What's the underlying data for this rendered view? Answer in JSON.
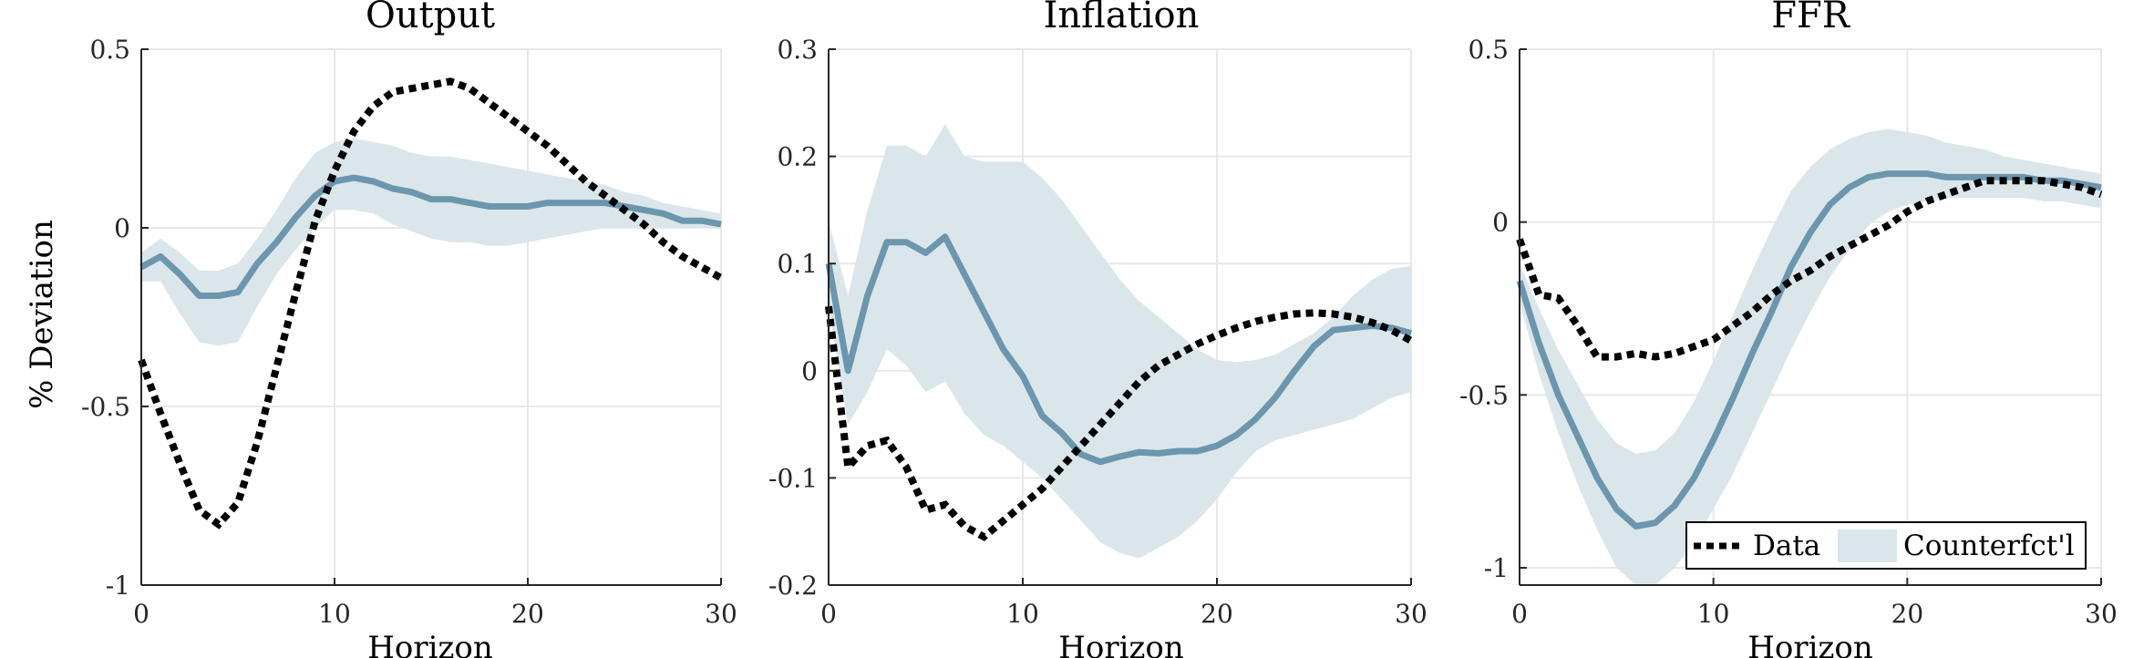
{
  "colors": {
    "band": "#dbe6eb",
    "median": "#6b96ae",
    "data_line": "#000000",
    "grid": "#e8e8e8",
    "axis": "#262626"
  },
  "shared_ylabel": "% Deviation",
  "legend": {
    "data_label": "Data",
    "band_label": "Counterfct'l",
    "location": "bottom-right of FFR panel"
  },
  "chart_data": [
    {
      "type": "line",
      "title": "Output",
      "xlabel": "Horizon",
      "ylabel": "% Deviation",
      "xlim": [
        0,
        30
      ],
      "ylim": [
        -1,
        0.5
      ],
      "xticks": [
        0,
        10,
        20,
        30
      ],
      "yticks": [
        -1,
        -0.5,
        0,
        0.5
      ],
      "ytick_labels": [
        "-1",
        "-0.5",
        "0",
        "0.5"
      ],
      "grid": true,
      "x": [
        0,
        1,
        2,
        3,
        4,
        5,
        6,
        7,
        8,
        9,
        10,
        11,
        12,
        13,
        14,
        15,
        16,
        17,
        18,
        19,
        20,
        21,
        22,
        23,
        24,
        25,
        26,
        27,
        28,
        29,
        30
      ],
      "series": [
        {
          "name": "Data",
          "style": "dotted",
          "values": [
            -0.37,
            -0.52,
            -0.66,
            -0.79,
            -0.83,
            -0.77,
            -0.6,
            -0.39,
            -0.18,
            0.02,
            0.16,
            0.27,
            0.34,
            0.38,
            0.39,
            0.4,
            0.41,
            0.39,
            0.35,
            0.31,
            0.27,
            0.23,
            0.18,
            0.13,
            0.09,
            0.05,
            0.01,
            -0.04,
            -0.08,
            -0.11,
            -0.14
          ]
        },
        {
          "name": "Counterfct'l",
          "style": "solid",
          "values": [
            -0.11,
            -0.08,
            -0.13,
            -0.19,
            -0.19,
            -0.18,
            -0.1,
            -0.04,
            0.03,
            0.09,
            0.13,
            0.14,
            0.13,
            0.11,
            0.1,
            0.08,
            0.08,
            0.07,
            0.06,
            0.06,
            0.06,
            0.07,
            0.07,
            0.07,
            0.07,
            0.06,
            0.05,
            0.04,
            0.02,
            0.02,
            0.01
          ]
        },
        {
          "name": "band_upper",
          "values": [
            -0.07,
            -0.03,
            -0.07,
            -0.12,
            -0.12,
            -0.1,
            -0.03,
            0.05,
            0.14,
            0.21,
            0.24,
            0.25,
            0.24,
            0.23,
            0.21,
            0.2,
            0.2,
            0.19,
            0.18,
            0.17,
            0.16,
            0.15,
            0.14,
            0.13,
            0.12,
            0.1,
            0.09,
            0.07,
            0.06,
            0.05,
            0.04
          ]
        },
        {
          "name": "band_lower",
          "values": [
            -0.15,
            -0.15,
            -0.24,
            -0.32,
            -0.33,
            -0.32,
            -0.22,
            -0.13,
            -0.06,
            0.0,
            0.05,
            0.05,
            0.04,
            0.01,
            -0.01,
            -0.03,
            -0.04,
            -0.04,
            -0.05,
            -0.05,
            -0.04,
            -0.03,
            -0.02,
            -0.01,
            0.0,
            0.0,
            0.0,
            0.0,
            0.0,
            0.0,
            0.0
          ]
        }
      ]
    },
    {
      "type": "line",
      "title": "Inflation",
      "xlabel": "Horizon",
      "xlim": [
        0,
        30
      ],
      "ylim": [
        -0.2,
        0.3
      ],
      "xticks": [
        0,
        10,
        20,
        30
      ],
      "yticks": [
        -0.2,
        -0.1,
        0,
        0.1,
        0.2,
        0.3
      ],
      "ytick_labels": [
        "-0.2",
        "-0.1",
        "0",
        "0.1",
        "0.2",
        "0.3"
      ],
      "grid": true,
      "x": [
        0,
        1,
        2,
        3,
        4,
        5,
        6,
        7,
        8,
        9,
        10,
        11,
        12,
        13,
        14,
        15,
        16,
        17,
        18,
        19,
        20,
        21,
        22,
        23,
        24,
        25,
        26,
        27,
        28,
        29,
        30
      ],
      "series": [
        {
          "name": "Data",
          "style": "dotted",
          "values": [
            0.06,
            -0.09,
            -0.07,
            -0.065,
            -0.09,
            -0.13,
            -0.125,
            -0.145,
            -0.155,
            -0.14,
            -0.125,
            -0.11,
            -0.09,
            -0.07,
            -0.05,
            -0.03,
            -0.01,
            0.005,
            0.015,
            0.025,
            0.033,
            0.04,
            0.046,
            0.05,
            0.053,
            0.054,
            0.053,
            0.05,
            0.045,
            0.038,
            0.028
          ]
        },
        {
          "name": "Counterfct'l",
          "style": "solid",
          "values": [
            0.1,
            0.0,
            0.07,
            0.12,
            0.12,
            0.11,
            0.125,
            0.09,
            0.055,
            0.02,
            -0.005,
            -0.042,
            -0.058,
            -0.078,
            -0.085,
            -0.08,
            -0.076,
            -0.077,
            -0.075,
            -0.075,
            -0.07,
            -0.06,
            -0.045,
            -0.025,
            0.0,
            0.023,
            0.038,
            0.04,
            0.042,
            0.04,
            0.035
          ]
        },
        {
          "name": "band_upper",
          "values": [
            0.14,
            0.07,
            0.15,
            0.21,
            0.21,
            0.2,
            0.23,
            0.2,
            0.195,
            0.195,
            0.195,
            0.18,
            0.16,
            0.135,
            0.11,
            0.085,
            0.065,
            0.05,
            0.035,
            0.02,
            0.01,
            0.008,
            0.01,
            0.015,
            0.025,
            0.035,
            0.05,
            0.07,
            0.085,
            0.095,
            0.098
          ]
        },
        {
          "name": "band_lower",
          "values": [
            0.06,
            -0.05,
            -0.02,
            0.02,
            0.005,
            -0.02,
            -0.01,
            -0.04,
            -0.06,
            -0.07,
            -0.085,
            -0.1,
            -0.12,
            -0.14,
            -0.16,
            -0.17,
            -0.175,
            -0.165,
            -0.155,
            -0.14,
            -0.12,
            -0.095,
            -0.075,
            -0.065,
            -0.06,
            -0.055,
            -0.05,
            -0.045,
            -0.035,
            -0.025,
            -0.02
          ]
        }
      ]
    },
    {
      "type": "line",
      "title": "FFR",
      "xlabel": "Horizon",
      "xlim": [
        0,
        30
      ],
      "ylim": [
        -1.05,
        0.5
      ],
      "xticks": [
        0,
        10,
        20,
        30
      ],
      "yticks": [
        -1,
        -0.5,
        0,
        0.5
      ],
      "ytick_labels": [
        "-1",
        "-0.5",
        "0",
        "0.5"
      ],
      "grid": true,
      "x": [
        0,
        1,
        2,
        3,
        4,
        5,
        6,
        7,
        8,
        9,
        10,
        11,
        12,
        13,
        14,
        15,
        16,
        17,
        18,
        19,
        20,
        21,
        22,
        23,
        24,
        25,
        26,
        27,
        28,
        29,
        30
      ],
      "series": [
        {
          "name": "Data",
          "style": "dotted",
          "values": [
            -0.05,
            -0.21,
            -0.22,
            -0.3,
            -0.39,
            -0.39,
            -0.38,
            -0.39,
            -0.38,
            -0.36,
            -0.34,
            -0.3,
            -0.26,
            -0.21,
            -0.17,
            -0.14,
            -0.1,
            -0.07,
            -0.04,
            -0.01,
            0.03,
            0.06,
            0.08,
            0.1,
            0.12,
            0.12,
            0.12,
            0.12,
            0.11,
            0.1,
            0.08
          ]
        },
        {
          "name": "Counterfct'l",
          "style": "solid",
          "values": [
            -0.17,
            -0.35,
            -0.5,
            -0.62,
            -0.74,
            -0.83,
            -0.88,
            -0.87,
            -0.82,
            -0.74,
            -0.63,
            -0.51,
            -0.38,
            -0.26,
            -0.13,
            -0.03,
            0.05,
            0.1,
            0.13,
            0.14,
            0.14,
            0.14,
            0.13,
            0.13,
            0.13,
            0.13,
            0.13,
            0.12,
            0.12,
            0.11,
            0.1
          ]
        },
        {
          "name": "band_upper",
          "values": [
            -0.12,
            -0.25,
            -0.37,
            -0.47,
            -0.57,
            -0.64,
            -0.67,
            -0.66,
            -0.61,
            -0.52,
            -0.4,
            -0.27,
            -0.14,
            -0.02,
            0.09,
            0.16,
            0.21,
            0.24,
            0.26,
            0.27,
            0.26,
            0.25,
            0.23,
            0.22,
            0.21,
            0.19,
            0.18,
            0.17,
            0.16,
            0.15,
            0.14
          ]
        },
        {
          "name": "band_lower",
          "values": [
            -0.23,
            -0.44,
            -0.61,
            -0.76,
            -0.89,
            -1.0,
            -1.05,
            -1.05,
            -1.0,
            -0.93,
            -0.83,
            -0.73,
            -0.61,
            -0.49,
            -0.37,
            -0.26,
            -0.16,
            -0.08,
            -0.01,
            0.03,
            0.05,
            0.06,
            0.07,
            0.07,
            0.07,
            0.07,
            0.07,
            0.06,
            0.06,
            0.05,
            0.04
          ]
        }
      ]
    }
  ]
}
